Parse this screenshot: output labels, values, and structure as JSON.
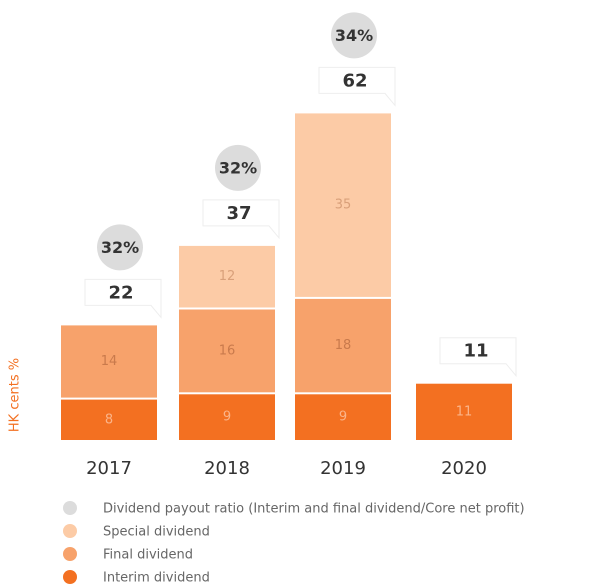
{
  "chart_data": {
    "type": "bar",
    "stacked": true,
    "y_label": "HK cents %",
    "categories": [
      "2017",
      "2018",
      "2019",
      "2020"
    ],
    "series": [
      {
        "name": "Interim dividend",
        "color": "#f37021",
        "values": [
          8,
          9,
          9,
          11
        ]
      },
      {
        "name": "Final dividend",
        "color": "#f7a26b",
        "values": [
          14,
          16,
          18,
          null
        ]
      },
      {
        "name": "Special dividend",
        "color": "#fccba6",
        "values": [
          null,
          12,
          35,
          null
        ]
      }
    ],
    "totals": [
      22,
      37,
      62,
      11
    ],
    "ratio": {
      "name": "Dividend payout ratio (Interim and final dividend/Core net profit)",
      "color": "#dcdcdc",
      "values": [
        32,
        32,
        34,
        null
      ],
      "value_labels": [
        "32%",
        "32%",
        "34%",
        null
      ]
    }
  }
}
